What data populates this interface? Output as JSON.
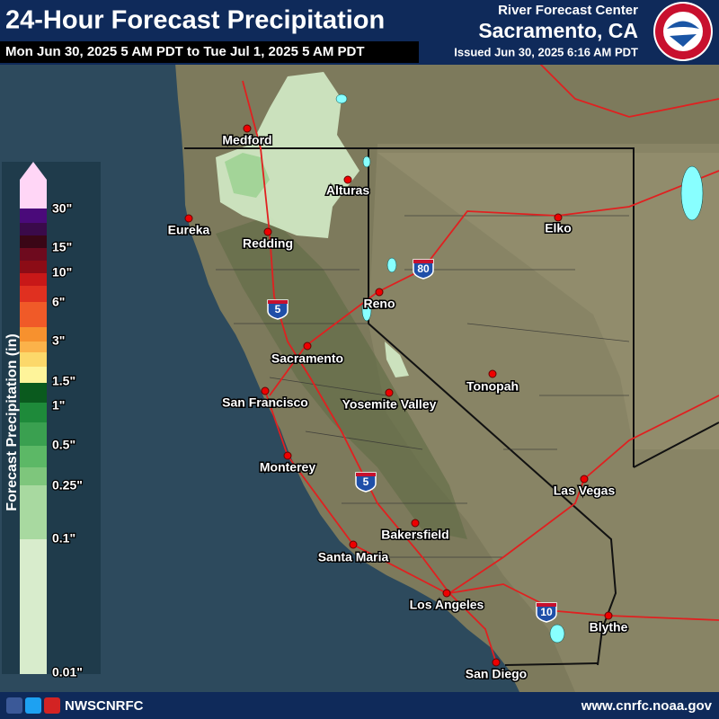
{
  "header": {
    "title": "24-Hour Forecast Precipitation",
    "period": "Mon Jun 30, 2025 5 AM PDT to Tue Jul 1, 2025 5 AM PDT",
    "agency": "River Forecast Center",
    "office": "Sacramento, CA",
    "issued": "Issued Jun 30, 2025 6:16 AM PDT"
  },
  "legend": {
    "title": "Forecast Precipitation (in)",
    "labels": [
      "30\"",
      "15\"",
      "10\"",
      "6\"",
      "3\"",
      "1.5\"",
      "1\"",
      "0.5\"",
      "0.25\"",
      "0.1\"",
      "0.01\""
    ]
  },
  "cities": [
    "Medford",
    "Alturas",
    "Eureka",
    "Redding",
    "Elko",
    "Reno",
    "Sacramento",
    "San Francisco",
    "Yosemite Valley",
    "Tonopah",
    "Monterey",
    "Las Vegas",
    "Bakersfield",
    "Santa Maria",
    "Los Angeles",
    "Blythe",
    "San Diego"
  ],
  "interstates": [
    "5",
    "80",
    "5",
    "10"
  ],
  "footer": {
    "social": "NWSCNRFC",
    "url": "www.cnrfc.noaa.gov"
  }
}
